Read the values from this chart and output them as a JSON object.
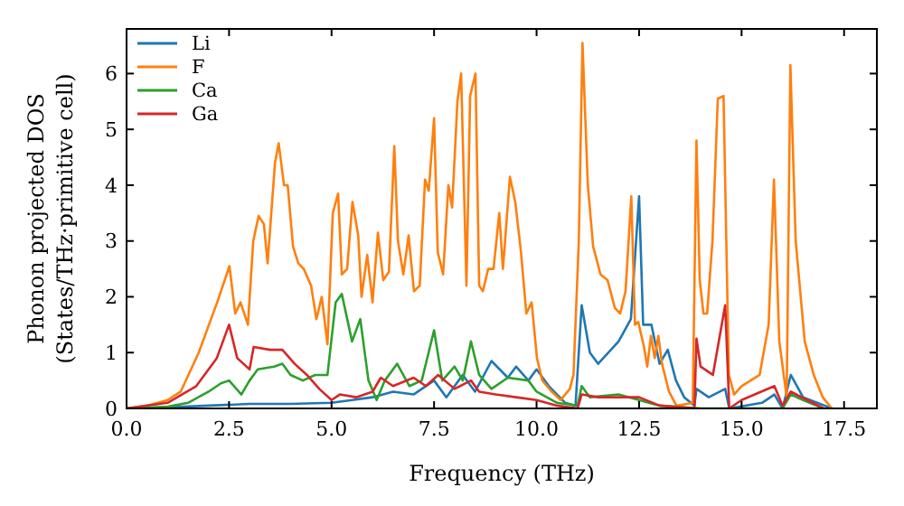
{
  "chart_data": {
    "type": "line",
    "xlabel": "Frequency (THz)",
    "ylabel": "Phonon projected DOS\n(States/THz·primitive cell)",
    "xlim": [
      0,
      18.3
    ],
    "ylim": [
      0,
      6.8
    ],
    "xticks": [
      {
        "value": 0,
        "label": "0.0"
      },
      {
        "value": 2.5,
        "label": "2.5"
      },
      {
        "value": 5,
        "label": "5.0"
      },
      {
        "value": 7.5,
        "label": "7.5"
      },
      {
        "value": 10,
        "label": "10.0"
      },
      {
        "value": 12.5,
        "label": "12.5"
      },
      {
        "value": 15,
        "label": "15.0"
      },
      {
        "value": 17.5,
        "label": "17.5"
      }
    ],
    "yticks": [
      0,
      1,
      2,
      3,
      4,
      5,
      6
    ],
    "legend": "top left",
    "grid": false,
    "marker": "none",
    "line_style": "solid",
    "series": [
      {
        "name": "Li",
        "color": "#1f77b4",
        "x": [
          0,
          1,
          2,
          3,
          4,
          5,
          5.5,
          6,
          6.5,
          7,
          7.5,
          7.8,
          8.2,
          8.5,
          8.9,
          9.3,
          9.5,
          9.8,
          10,
          10.3,
          10.7,
          10.95,
          11.1,
          11.3,
          11.5,
          12,
          12.3,
          12.5,
          12.6,
          12.8,
          13,
          13.2,
          13.4,
          13.6,
          13.85,
          13.9,
          14.2,
          14.6,
          14.7,
          15.5,
          15.8,
          16,
          16.2,
          16.5,
          17.2
        ],
        "values": [
          0,
          0.02,
          0.05,
          0.08,
          0.08,
          0.1,
          0.15,
          0.2,
          0.3,
          0.25,
          0.5,
          0.2,
          0.6,
          0.3,
          0.85,
          0.55,
          0.75,
          0.5,
          0.7,
          0.4,
          0.1,
          0.05,
          1.85,
          1,
          0.8,
          1.2,
          1.6,
          3.8,
          1.5,
          1.5,
          0.8,
          1.05,
          0.5,
          0.2,
          0.05,
          0.35,
          0.2,
          0.35,
          0,
          0.1,
          0.25,
          0,
          0.6,
          0.2,
          0
        ]
      },
      {
        "name": "F",
        "color": "#ff7f0e",
        "x": [
          0,
          0.5,
          1,
          1.32,
          1.76,
          2.21,
          2.51,
          2.65,
          2.78,
          2.96,
          3.09,
          3.22,
          3.35,
          3.44,
          3.62,
          3.71,
          3.84,
          3.93,
          4.06,
          4.19,
          4.32,
          4.5,
          4.63,
          4.76,
          4.9,
          5.03,
          5.16,
          5.25,
          5.38,
          5.51,
          5.65,
          5.73,
          5.87,
          6,
          6.13,
          6.26,
          6.4,
          6.53,
          6.62,
          6.75,
          6.88,
          7.01,
          7.15,
          7.28,
          7.37,
          7.5,
          7.59,
          7.72,
          7.85,
          7.94,
          8.07,
          8.16,
          8.29,
          8.38,
          8.51,
          8.6,
          8.69,
          8.82,
          8.95,
          9.09,
          9.18,
          9.35,
          9.48,
          9.62,
          9.75,
          9.88,
          10.01,
          10.14,
          10.37,
          10.59,
          10.81,
          10.9,
          11.03,
          11.12,
          11.25,
          11.38,
          11.56,
          11.73,
          11.91,
          12.04,
          12.17,
          12.31,
          12.4,
          12.48,
          12.62,
          12.7,
          12.79,
          12.88,
          12.97,
          13.06,
          13.23,
          13.41,
          13.81,
          13.9,
          13.98,
          14.07,
          14.16,
          14.29,
          14.42,
          14.56,
          14.69,
          14.82,
          15,
          15.22,
          15.44,
          15.66,
          15.79,
          15.92,
          16.1,
          16.19,
          16.32,
          16.54,
          16.76,
          16.98,
          17.2
        ],
        "values": [
          0,
          0.05,
          0.15,
          0.3,
          1,
          1.9,
          2.55,
          1.7,
          1.9,
          1.5,
          3,
          3.45,
          3.3,
          2.6,
          4.4,
          4.75,
          4,
          4,
          2.9,
          2.6,
          2.5,
          2.2,
          1.6,
          2,
          1.15,
          3.5,
          3.85,
          2.4,
          2.5,
          3.7,
          3.1,
          2,
          2.75,
          1.9,
          3.15,
          2.3,
          2.45,
          4.7,
          3,
          2.4,
          3.1,
          2.1,
          2.2,
          4.1,
          3.9,
          5.2,
          2.8,
          2.4,
          4,
          3.6,
          5.5,
          6,
          2.2,
          5.6,
          6,
          2.2,
          2.1,
          2.5,
          2.5,
          3.5,
          2.5,
          4.15,
          3.7,
          2.8,
          1.7,
          1.9,
          0.9,
          0.5,
          0.3,
          0.15,
          0.35,
          0.6,
          3,
          6.55,
          4,
          2.9,
          2.4,
          2.3,
          1.8,
          1.7,
          2.1,
          3.8,
          1.5,
          1.55,
          1.1,
          0.75,
          1.3,
          0.9,
          1.3,
          0.8,
          0.3,
          0.05,
          0.1,
          4.8,
          2.3,
          1.7,
          1.7,
          3,
          5.55,
          5.6,
          0.6,
          0.25,
          0.4,
          0.5,
          0.6,
          1.5,
          4.1,
          1.2,
          0.2,
          6.15,
          3,
          1.2,
          0.6,
          0.2,
          0
        ]
      },
      {
        "name": "Ca",
        "color": "#2ca02c",
        "x": [
          0,
          1,
          1.5,
          2,
          2.3,
          2.5,
          2.8,
          3,
          3.2,
          3.6,
          3.8,
          4,
          4.3,
          4.6,
          4.9,
          5.1,
          5.25,
          5.5,
          5.7,
          5.9,
          6.1,
          6.3,
          6.6,
          6.9,
          7.2,
          7.5,
          7.7,
          8,
          8.2,
          8.4,
          8.6,
          8.9,
          9.3,
          9.8,
          10,
          10.5,
          11,
          11.1,
          11.3,
          12,
          12.5,
          13,
          14,
          16,
          16.2,
          16.5,
          17
        ],
        "values": [
          0,
          0.03,
          0.1,
          0.3,
          0.45,
          0.5,
          0.25,
          0.5,
          0.7,
          0.75,
          0.8,
          0.6,
          0.5,
          0.6,
          0.6,
          1.9,
          2.05,
          1.2,
          1.6,
          0.5,
          0.15,
          0.5,
          0.8,
          0.4,
          0.5,
          1.4,
          0.5,
          0.75,
          0.5,
          1.2,
          0.6,
          0.35,
          0.55,
          0.5,
          0.3,
          0.1,
          0.05,
          0.4,
          0.2,
          0.25,
          0.15,
          0.05,
          0,
          0,
          0.25,
          0.15,
          0
        ]
      },
      {
        "name": "Ga",
        "color": "#d62728",
        "x": [
          0,
          1,
          1.7,
          2.2,
          2.5,
          2.7,
          3,
          3.1,
          3.5,
          3.8,
          4.1,
          4.4,
          4.7,
          5,
          5.2,
          5.6,
          6,
          6.2,
          6.5,
          7,
          7.3,
          7.6,
          8,
          8.4,
          8.6,
          9,
          9.5,
          10,
          10.5,
          11,
          11.1,
          11.5,
          12.5,
          13,
          13.85,
          13.9,
          14,
          14.3,
          14.6,
          14.7,
          15,
          15.8,
          16,
          16.2,
          17
        ],
        "values": [
          0,
          0.1,
          0.4,
          0.9,
          1.5,
          0.9,
          0.7,
          1.1,
          1.05,
          1.05,
          0.8,
          0.6,
          0.35,
          0.15,
          0.25,
          0.2,
          0.3,
          0.55,
          0.4,
          0.55,
          0.4,
          0.6,
          0.35,
          0.5,
          0.3,
          0.25,
          0.2,
          0.15,
          0.05,
          0,
          0.25,
          0.2,
          0.2,
          0.05,
          0,
          1.25,
          0.75,
          0.6,
          1.85,
          0,
          0.15,
          0.4,
          0.05,
          0.3,
          0
        ]
      }
    ]
  }
}
